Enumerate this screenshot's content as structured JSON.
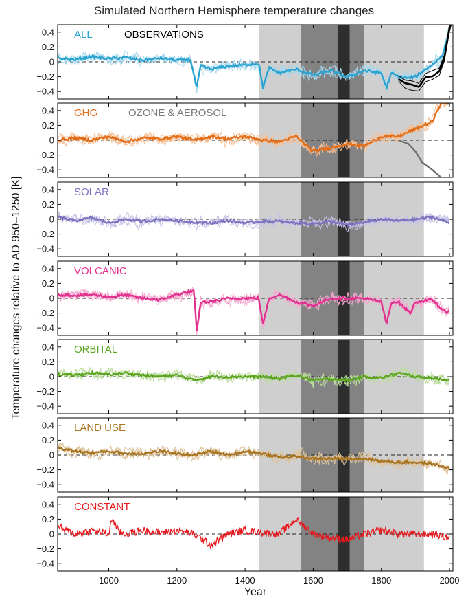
{
  "title": "Simulated Northern Hemisphere temperature changes",
  "chart_data": {
    "type": "line",
    "xlabel": "Year",
    "ylabel": "Temperature changes relative to AD 950–1250  [K]",
    "xlim": [
      850,
      2010
    ],
    "ylim": [
      -0.5,
      0.5
    ],
    "xticks": [
      1000,
      1200,
      1400,
      1600,
      1800,
      2000
    ],
    "yticks": [
      0.4,
      0.2,
      0,
      -0.2,
      -0.4
    ],
    "ytick_labels": [
      "0.4",
      "0.2",
      "0",
      "−0.2",
      "−0.4"
    ],
    "zero_line": "dashed",
    "shaded_periods": [
      {
        "start": 1440,
        "end": 1925,
        "shade": "light"
      },
      {
        "start": 1565,
        "end": 1750,
        "shade": "medium"
      },
      {
        "start": 1672,
        "end": 1707,
        "shade": "dark"
      }
    ],
    "panels": [
      {
        "label": "ALL",
        "color": "#2aa3d0",
        "light_color": "#a6d8ee",
        "extra_label": "OBSERVATIONS",
        "extra_color": "#000000",
        "mean": [
          [
            850,
            0.05
          ],
          [
            900,
            0.03
          ],
          [
            950,
            0.07
          ],
          [
            1000,
            0.04
          ],
          [
            1050,
            0.06
          ],
          [
            1100,
            0.02
          ],
          [
            1150,
            0.05
          ],
          [
            1200,
            0.02
          ],
          [
            1240,
            0.03
          ],
          [
            1258,
            -0.35
          ],
          [
            1270,
            -0.05
          ],
          [
            1300,
            -0.1
          ],
          [
            1350,
            -0.06
          ],
          [
            1400,
            -0.04
          ],
          [
            1440,
            -0.02
          ],
          [
            1453,
            -0.35
          ],
          [
            1470,
            -0.08
          ],
          [
            1500,
            -0.15
          ],
          [
            1550,
            -0.1
          ],
          [
            1600,
            -0.18
          ],
          [
            1650,
            -0.12
          ],
          [
            1700,
            -0.2
          ],
          [
            1750,
            -0.12
          ],
          [
            1800,
            -0.15
          ],
          [
            1815,
            -0.35
          ],
          [
            1830,
            -0.15
          ],
          [
            1850,
            -0.2
          ],
          [
            1880,
            -0.22
          ],
          [
            1900,
            -0.2
          ],
          [
            1930,
            -0.1
          ],
          [
            1960,
            0.0
          ],
          [
            1980,
            0.1
          ],
          [
            2000,
            0.42
          ]
        ]
      },
      {
        "label": "GHG",
        "color": "#e36c16",
        "light_color": "#f5bf95",
        "extra_label": "OZONE & AEROSOL",
        "extra_color": "#7a7a7a",
        "mean": [
          [
            850,
            0.0
          ],
          [
            900,
            0.03
          ],
          [
            950,
            0.0
          ],
          [
            1000,
            0.05
          ],
          [
            1050,
            -0.02
          ],
          [
            1100,
            0.03
          ],
          [
            1150,
            0.02
          ],
          [
            1200,
            0.05
          ],
          [
            1250,
            0.0
          ],
          [
            1300,
            0.05
          ],
          [
            1350,
            0.02
          ],
          [
            1400,
            0.05
          ],
          [
            1450,
            0.0
          ],
          [
            1500,
            -0.02
          ],
          [
            1550,
            0.05
          ],
          [
            1600,
            -0.15
          ],
          [
            1650,
            -0.1
          ],
          [
            1700,
            -0.05
          ],
          [
            1750,
            -0.08
          ],
          [
            1800,
            0.05
          ],
          [
            1850,
            0.05
          ],
          [
            1900,
            0.15
          ],
          [
            1950,
            0.25
          ],
          [
            1975,
            0.5
          ]
        ]
      },
      {
        "label": "SOLAR",
        "color": "#7b72c0",
        "light_color": "#c7c3e6",
        "mean": [
          [
            850,
            0.03
          ],
          [
            900,
            -0.02
          ],
          [
            950,
            0.02
          ],
          [
            1000,
            -0.05
          ],
          [
            1050,
            0.0
          ],
          [
            1100,
            -0.03
          ],
          [
            1150,
            0.0
          ],
          [
            1200,
            -0.02
          ],
          [
            1250,
            -0.04
          ],
          [
            1300,
            -0.05
          ],
          [
            1350,
            -0.02
          ],
          [
            1400,
            -0.05
          ],
          [
            1450,
            -0.03
          ],
          [
            1500,
            -0.03
          ],
          [
            1550,
            -0.05
          ],
          [
            1600,
            -0.06
          ],
          [
            1650,
            -0.03
          ],
          [
            1700,
            -0.08
          ],
          [
            1750,
            -0.04
          ],
          [
            1800,
            0.0
          ],
          [
            1850,
            -0.02
          ],
          [
            1900,
            0.0
          ],
          [
            1950,
            0.03
          ],
          [
            2000,
            -0.05
          ]
        ]
      },
      {
        "label": "VOLCANIC",
        "color": "#e2308e",
        "light_color": "#f4a9d0",
        "mean": [
          [
            850,
            0.05
          ],
          [
            900,
            0.04
          ],
          [
            950,
            0.05
          ],
          [
            1000,
            0.02
          ],
          [
            1050,
            0.04
          ],
          [
            1100,
            0.0
          ],
          [
            1150,
            -0.02
          ],
          [
            1200,
            0.05
          ],
          [
            1250,
            0.1
          ],
          [
            1258,
            -0.45
          ],
          [
            1270,
            -0.05
          ],
          [
            1300,
            -0.05
          ],
          [
            1350,
            0.0
          ],
          [
            1400,
            0.0
          ],
          [
            1440,
            0.0
          ],
          [
            1453,
            -0.35
          ],
          [
            1470,
            0.0
          ],
          [
            1500,
            0.05
          ],
          [
            1550,
            -0.05
          ],
          [
            1600,
            -0.1
          ],
          [
            1650,
            0.0
          ],
          [
            1700,
            0.0
          ],
          [
            1750,
            0.0
          ],
          [
            1800,
            -0.05
          ],
          [
            1815,
            -0.35
          ],
          [
            1830,
            -0.05
          ],
          [
            1850,
            -0.05
          ],
          [
            1885,
            -0.2
          ],
          [
            1900,
            -0.05
          ],
          [
            1950,
            -0.02
          ],
          [
            1990,
            -0.2
          ],
          [
            2000,
            -0.15
          ]
        ]
      },
      {
        "label": "ORBITAL",
        "color": "#5aa41e",
        "light_color": "#bcdc9f",
        "mean": [
          [
            850,
            0.03
          ],
          [
            900,
            0.02
          ],
          [
            950,
            0.05
          ],
          [
            1000,
            0.03
          ],
          [
            1050,
            0.05
          ],
          [
            1100,
            0.02
          ],
          [
            1150,
            0.0
          ],
          [
            1200,
            0.02
          ],
          [
            1250,
            -0.05
          ],
          [
            1300,
            0.0
          ],
          [
            1350,
            0.0
          ],
          [
            1400,
            0.0
          ],
          [
            1450,
            0.0
          ],
          [
            1500,
            -0.03
          ],
          [
            1550,
            0.02
          ],
          [
            1600,
            -0.05
          ],
          [
            1650,
            -0.03
          ],
          [
            1700,
            -0.05
          ],
          [
            1750,
            0.0
          ],
          [
            1800,
            -0.02
          ],
          [
            1850,
            0.05
          ],
          [
            1900,
            0.0
          ],
          [
            1950,
            -0.02
          ],
          [
            2000,
            -0.05
          ]
        ]
      },
      {
        "label": "LAND USE",
        "color": "#a8741f",
        "light_color": "#dec39b",
        "mean": [
          [
            850,
            0.1
          ],
          [
            900,
            0.05
          ],
          [
            950,
            0.03
          ],
          [
            1000,
            0.05
          ],
          [
            1050,
            0.02
          ],
          [
            1100,
            0.02
          ],
          [
            1150,
            0.05
          ],
          [
            1200,
            0.02
          ],
          [
            1250,
            0.0
          ],
          [
            1300,
            0.05
          ],
          [
            1350,
            0.0
          ],
          [
            1400,
            0.05
          ],
          [
            1450,
            0.02
          ],
          [
            1500,
            -0.03
          ],
          [
            1550,
            -0.02
          ],
          [
            1600,
            -0.05
          ],
          [
            1650,
            -0.05
          ],
          [
            1700,
            -0.05
          ],
          [
            1750,
            -0.05
          ],
          [
            1800,
            -0.08
          ],
          [
            1850,
            -0.1
          ],
          [
            1900,
            -0.1
          ],
          [
            1950,
            -0.12
          ],
          [
            2000,
            -0.18
          ]
        ]
      },
      {
        "label": "CONSTANT",
        "color": "#e8191e",
        "light_color": "#f7a6a8",
        "mean": [
          [
            850,
            0.1
          ],
          [
            900,
            0.0
          ],
          [
            950,
            0.05
          ],
          [
            1000,
            0.0
          ],
          [
            1010,
            0.22
          ],
          [
            1030,
            0.02
          ],
          [
            1050,
            0.0
          ],
          [
            1100,
            0.05
          ],
          [
            1150,
            0.02
          ],
          [
            1200,
            0.05
          ],
          [
            1250,
            0.0
          ],
          [
            1300,
            -0.15
          ],
          [
            1350,
            0.0
          ],
          [
            1400,
            0.05
          ],
          [
            1450,
            0.02
          ],
          [
            1500,
            0.0
          ],
          [
            1550,
            0.2
          ],
          [
            1600,
            0.0
          ],
          [
            1650,
            -0.05
          ],
          [
            1700,
            -0.08
          ],
          [
            1750,
            0.0
          ],
          [
            1800,
            0.05
          ],
          [
            1850,
            0.0
          ],
          [
            1900,
            0.0
          ],
          [
            1950,
            0.0
          ],
          [
            2000,
            -0.05
          ]
        ]
      }
    ]
  }
}
